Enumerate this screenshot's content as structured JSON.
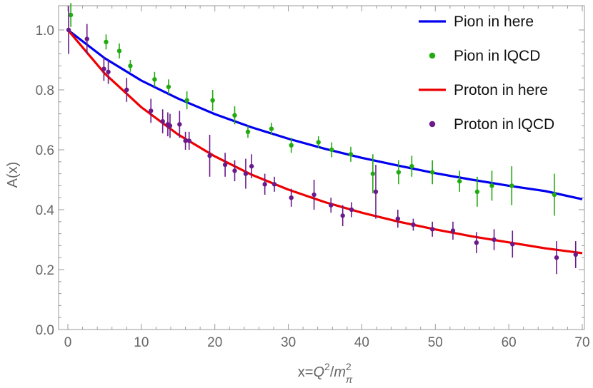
{
  "chart_data": {
    "type": "scatter",
    "xlabel": {
      "prefix": "x=",
      "var": "Q",
      "sup": "2",
      "sep": "/",
      "den": "m",
      "den_sup": "2",
      "den_sub": "π"
    },
    "ylabel": "A(x)",
    "xlim": [
      0,
      70
    ],
    "ylim": [
      0,
      1.0
    ],
    "xticks": [
      0,
      10,
      20,
      30,
      40,
      50,
      60,
      70
    ],
    "yticks": [
      0.0,
      0.2,
      0.4,
      0.6,
      0.8,
      1.0
    ],
    "xtick_labels": [
      "0",
      "10",
      "20",
      "30",
      "40",
      "50",
      "60",
      "70"
    ],
    "ytick_labels": [
      "0.0",
      "0.2",
      "0.4",
      "0.6",
      "0.8",
      "1.0"
    ],
    "grid": false,
    "legend_position": "top-right",
    "series": [
      {
        "name": "Pion in here",
        "kind": "line",
        "color": "#0000ee",
        "x": [
          0,
          5,
          10,
          15,
          20,
          25,
          30,
          35,
          40,
          45,
          50,
          55,
          60,
          65,
          70
        ],
        "y": [
          1.0,
          0.906,
          0.831,
          0.771,
          0.719,
          0.675,
          0.637,
          0.603,
          0.573,
          0.547,
          0.522,
          0.5,
          0.48,
          0.462,
          0.435
        ]
      },
      {
        "name": "Pion in lQCD",
        "kind": "points",
        "color": "#22aa11",
        "x": [
          0.4,
          5.2,
          7.0,
          8.5,
          11.8,
          13.7,
          16.2,
          19.7,
          22.7,
          24.5,
          27.7,
          30.4,
          34.1,
          35.9,
          38.5,
          41.5,
          45.0,
          46.8,
          49.6,
          53.3,
          55.7,
          57.7,
          60.4,
          66.2
        ],
        "y": [
          1.05,
          0.96,
          0.93,
          0.88,
          0.835,
          0.81,
          0.765,
          0.765,
          0.715,
          0.66,
          0.67,
          0.615,
          0.625,
          0.6,
          0.585,
          0.52,
          0.525,
          0.545,
          0.525,
          0.495,
          0.46,
          0.48,
          0.48,
          0.45
        ],
        "err": [
          0.04,
          0.025,
          0.025,
          0.02,
          0.025,
          0.025,
          0.03,
          0.035,
          0.03,
          0.02,
          0.02,
          0.025,
          0.02,
          0.025,
          0.025,
          0.065,
          0.04,
          0.035,
          0.04,
          0.035,
          0.05,
          0.05,
          0.065,
          0.07
        ]
      },
      {
        "name": "Proton in here",
        "kind": "line",
        "color": "#ee0000",
        "x": [
          0,
          5,
          10,
          15,
          20,
          25,
          30,
          35,
          40,
          45,
          50,
          55,
          60,
          65,
          70
        ],
        "y": [
          1.0,
          0.855,
          0.742,
          0.651,
          0.578,
          0.517,
          0.467,
          0.425,
          0.39,
          0.36,
          0.334,
          0.311,
          0.291,
          0.271,
          0.255
        ]
      },
      {
        "name": "Proton in lQCD",
        "kind": "points",
        "color": "#6a1a8a",
        "x": [
          0.1,
          2.6,
          4.9,
          5.5,
          8.0,
          11.3,
          12.9,
          13.6,
          13.9,
          15.2,
          16.0,
          16.5,
          19.3,
          21.4,
          22.7,
          24.2,
          25.0,
          26.8,
          28.1,
          30.4,
          33.5,
          35.8,
          37.4,
          38.6,
          41.9,
          44.9,
          47.0,
          49.6,
          52.4,
          55.6,
          58.0,
          60.5,
          66.5,
          69.1
        ],
        "y": [
          1.0,
          0.97,
          0.87,
          0.86,
          0.8,
          0.73,
          0.695,
          0.685,
          0.68,
          0.685,
          0.63,
          0.63,
          0.58,
          0.55,
          0.53,
          0.52,
          0.545,
          0.485,
          0.485,
          0.44,
          0.45,
          0.415,
          0.38,
          0.4,
          0.46,
          0.37,
          0.35,
          0.335,
          0.33,
          0.29,
          0.3,
          0.285,
          0.24,
          0.25
        ],
        "err": [
          0.08,
          0.05,
          0.04,
          0.04,
          0.04,
          0.04,
          0.04,
          0.04,
          0.04,
          0.045,
          0.03,
          0.03,
          0.07,
          0.04,
          0.035,
          0.05,
          0.04,
          0.035,
          0.025,
          0.03,
          0.05,
          0.025,
          0.035,
          0.025,
          0.09,
          0.03,
          0.02,
          0.025,
          0.03,
          0.035,
          0.035,
          0.045,
          0.055,
          0.045
        ]
      }
    ]
  }
}
